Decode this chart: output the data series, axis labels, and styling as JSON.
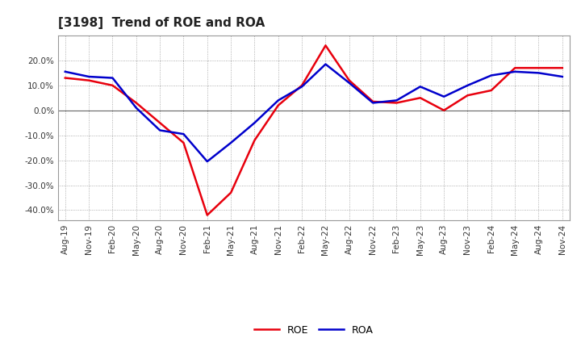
{
  "title": "[3198]  Trend of ROE and ROA",
  "x_labels": [
    "Aug-19",
    "Nov-19",
    "Feb-20",
    "May-20",
    "Aug-20",
    "Nov-20",
    "Feb-21",
    "May-21",
    "Aug-21",
    "Nov-21",
    "Feb-22",
    "May-22",
    "Aug-22",
    "Nov-22",
    "Feb-23",
    "May-23",
    "Aug-23",
    "Nov-23",
    "Feb-24",
    "May-24",
    "Aug-24",
    "Nov-24"
  ],
  "roe": [
    13.0,
    12.0,
    10.0,
    3.0,
    -5.0,
    -13.0,
    -42.0,
    -33.0,
    -12.0,
    2.0,
    10.0,
    26.0,
    12.0,
    3.5,
    3.0,
    5.0,
    0.0,
    6.0,
    8.0,
    17.0,
    17.0,
    17.0
  ],
  "roa": [
    15.5,
    13.5,
    13.0,
    1.0,
    -8.0,
    -9.5,
    -20.5,
    -13.0,
    -5.0,
    4.0,
    9.5,
    18.5,
    11.0,
    3.0,
    4.0,
    9.5,
    5.5,
    10.0,
    14.0,
    15.5,
    15.0,
    13.5
  ],
  "roe_color": "#e8000d",
  "roa_color": "#0000cc",
  "background_color": "#ffffff",
  "plot_bg_color": "#ffffff",
  "grid_color": "#999999",
  "ylim": [
    -44,
    30
  ],
  "yticks": [
    -40,
    -30,
    -20,
    -10,
    0,
    10,
    20
  ],
  "linewidth": 1.8,
  "title_fontsize": 11,
  "legend_fontsize": 9,
  "tick_fontsize": 7.5
}
